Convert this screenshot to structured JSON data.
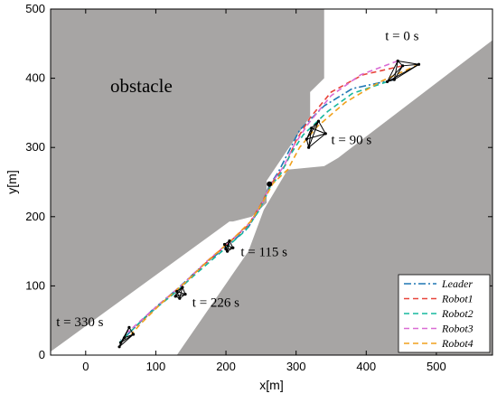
{
  "chart_data": {
    "type": "line",
    "title": "",
    "xlabel": "x[m]",
    "ylabel": "y[m]",
    "xlim": [
      -50,
      580
    ],
    "ylim": [
      0,
      500
    ],
    "xticks": [
      0,
      100,
      200,
      300,
      400,
      500
    ],
    "yticks": [
      0,
      100,
      200,
      300,
      400,
      500
    ],
    "xtick_labels": [
      "0",
      "100",
      "200",
      "300",
      "400",
      "500"
    ],
    "ytick_labels": [
      "0",
      "100",
      "200",
      "300",
      "400",
      "500"
    ],
    "grid": false,
    "legend_position": "bottom-right",
    "background_color": "#a7a5a4",
    "free_space_color": "#ffffff",
    "obstacle_label": "obstacle",
    "obstacles": [
      {
        "name": "upper-left-obstacle",
        "points": [
          [
            -50,
            500
          ],
          [
            340,
            500
          ],
          [
            340,
            400
          ],
          [
            320,
            380
          ],
          [
            320,
            345
          ],
          [
            258,
            252
          ],
          [
            258,
            220
          ],
          [
            237,
            200
          ],
          [
            210,
            193
          ],
          [
            205,
            193
          ],
          [
            -50,
            5
          ]
        ]
      },
      {
        "name": "lower-right-obstacle",
        "points": [
          [
            580,
            460
          ],
          [
            580,
            0
          ],
          [
            130,
            0
          ],
          [
            232,
            150
          ],
          [
            254,
            210
          ],
          [
            288,
            268
          ],
          [
            340,
            273
          ],
          [
            360,
            285
          ],
          [
            580,
            455
          ]
        ]
      }
    ],
    "series": [
      {
        "name": "Leader",
        "color": "#1f77b4",
        "dash": "dashdot",
        "x": [
          440,
          380,
          340,
          305,
          290,
          275,
          262,
          250,
          232,
          205,
          165,
          130,
          95,
          60,
          50
        ],
        "y": [
          398,
          385,
          360,
          325,
          295,
          265,
          245,
          215,
          185,
          160,
          128,
          95,
          65,
          30,
          22
        ]
      },
      {
        "name": "Robot1",
        "color": "#e8443a",
        "dash": "dashed",
        "x": [
          452,
          395,
          350,
          320,
          300,
          285,
          265,
          250,
          232,
          205,
          170,
          135,
          100,
          70,
          55
        ],
        "y": [
          418,
          405,
          380,
          343,
          310,
          275,
          248,
          218,
          188,
          163,
          132,
          97,
          68,
          40,
          25
        ]
      },
      {
        "name": "Robot2",
        "color": "#17b89d",
        "dash": "dashed",
        "x": [
          430,
          380,
          345,
          310,
          292,
          278,
          263,
          248,
          228,
          200,
          160,
          125,
          88,
          55,
          48
        ],
        "y": [
          395,
          378,
          352,
          318,
          290,
          262,
          243,
          210,
          180,
          155,
          120,
          88,
          58,
          25,
          18
        ]
      },
      {
        "name": "Robot3",
        "color": "#d96bd4",
        "dash": "dashed",
        "x": [
          445,
          392,
          350,
          318,
          298,
          282,
          264,
          252,
          235,
          208,
          172,
          138,
          103,
          72,
          60
        ],
        "y": [
          425,
          405,
          375,
          335,
          305,
          272,
          247,
          220,
          192,
          166,
          135,
          102,
          72,
          44,
          33
        ]
      },
      {
        "name": "Robot4",
        "color": "#f0a11d",
        "dash": "dashed",
        "x": [
          475,
          420,
          370,
          330,
          305,
          288,
          267,
          253,
          236,
          210,
          176,
          142,
          108,
          78,
          65
        ],
        "y": [
          420,
          395,
          365,
          330,
          300,
          268,
          248,
          222,
          194,
          168,
          138,
          105,
          75,
          45,
          30
        ]
      }
    ],
    "formation_snapshots": [
      {
        "label": "t = 0 s",
        "x": [
          440,
          452,
          475,
          430,
          445
        ],
        "y": [
          398,
          418,
          420,
          395,
          425
        ]
      },
      {
        "label": "t = 90 s",
        "x": [
          322,
          332,
          342,
          315,
          318
        ],
        "y": [
          328,
          338,
          320,
          312,
          300
        ]
      },
      {
        "label": "t = 115 s",
        "x": [
          198,
          205,
          210,
          200,
          202
        ],
        "y": [
          160,
          165,
          155,
          153,
          150
        ]
      },
      {
        "label": "t = 226 s",
        "x": [
          130,
          138,
          142,
          128,
          134
        ],
        "y": [
          92,
          98,
          88,
          85,
          82
        ]
      },
      {
        "label": "t = 330 s",
        "x": [
          55,
          62,
          68,
          50,
          48
        ],
        "y": [
          25,
          40,
          30,
          18,
          12
        ]
      }
    ],
    "annotations": [
      {
        "text": "t = 0 s",
        "x": 427,
        "y": 455
      },
      {
        "text": "t = 90 s",
        "x": 350,
        "y": 305
      },
      {
        "text": "t = 115 s",
        "x": 221,
        "y": 143
      },
      {
        "text": "t = 226 s",
        "x": 152,
        "y": 70
      },
      {
        "text": "t = 330 s",
        "x": -42,
        "y": 42
      }
    ],
    "obstacle_annotation": {
      "text": "obstacle",
      "x": 35,
      "y": 380
    }
  }
}
